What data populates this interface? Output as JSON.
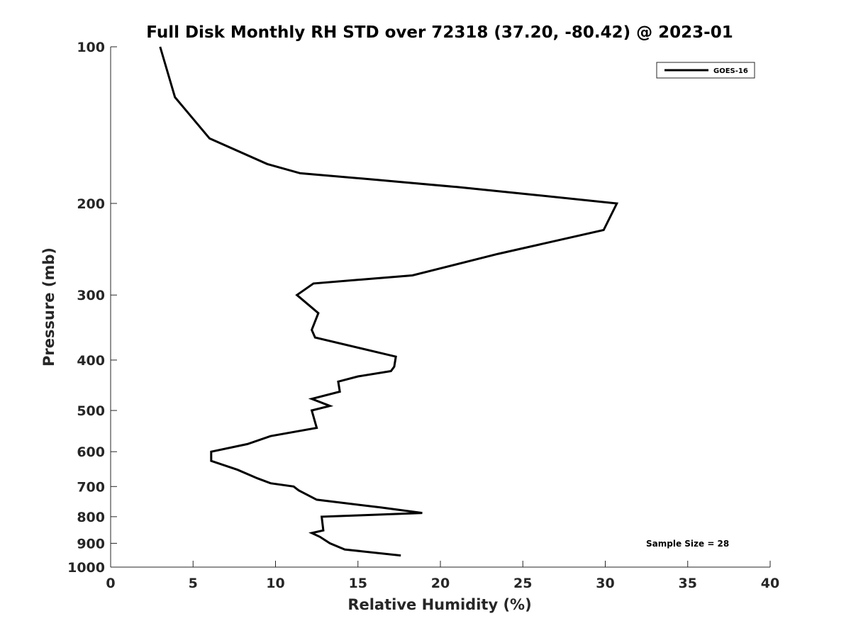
{
  "chart_data": {
    "type": "line",
    "title": "Full Disk Monthly RH STD over 72318 (37.20, -80.42) @ 2023-01",
    "xlabel": "Relative Humidity (%)",
    "ylabel": "Pressure (mb)",
    "xlim": [
      0,
      40
    ],
    "ylim": [
      100,
      1000
    ],
    "y_scale": "log",
    "y_reversed": true,
    "x_ticks": [
      "0",
      "5",
      "10",
      "15",
      "20",
      "25",
      "30",
      "35",
      "40"
    ],
    "x_tick_values": [
      0,
      5,
      10,
      15,
      20,
      25,
      30,
      35,
      40
    ],
    "y_ticks": [
      "100",
      "200",
      "300",
      "400",
      "500",
      "600",
      "700",
      "800",
      "900",
      "1000"
    ],
    "y_tick_values": [
      100,
      200,
      300,
      400,
      500,
      600,
      700,
      800,
      900,
      1000
    ],
    "grid": false,
    "legend_position": "top-right",
    "series": [
      {
        "name": "GOES-16",
        "color": "#000000",
        "points": [
          [
            3.0,
            100
          ],
          [
            3.9,
            125
          ],
          [
            6.0,
            150
          ],
          [
            9.5,
            168
          ],
          [
            11.5,
            175
          ],
          [
            16.0,
            180
          ],
          [
            21.0,
            186
          ],
          [
            26.0,
            193
          ],
          [
            30.7,
            200
          ],
          [
            29.9,
            225
          ],
          [
            23.5,
            250
          ],
          [
            18.3,
            275
          ],
          [
            12.3,
            285
          ],
          [
            11.3,
            300
          ],
          [
            12.6,
            325
          ],
          [
            12.2,
            350
          ],
          [
            12.4,
            362
          ],
          [
            17.3,
            394
          ],
          [
            17.2,
            412
          ],
          [
            17.0,
            420
          ],
          [
            15.0,
            430
          ],
          [
            13.8,
            440
          ],
          [
            13.9,
            460
          ],
          [
            12.2,
            475
          ],
          [
            13.3,
            490
          ],
          [
            12.2,
            500
          ],
          [
            12.5,
            540
          ],
          [
            9.7,
            560
          ],
          [
            8.3,
            580
          ],
          [
            6.1,
            600
          ],
          [
            6.1,
            625
          ],
          [
            7.7,
            650
          ],
          [
            8.9,
            675
          ],
          [
            9.7,
            690
          ],
          [
            11.1,
            700
          ],
          [
            11.4,
            712
          ],
          [
            12.5,
            742
          ],
          [
            16.4,
            768
          ],
          [
            18.9,
            787
          ],
          [
            15.2,
            795
          ],
          [
            12.8,
            800
          ],
          [
            12.9,
            850
          ],
          [
            12.2,
            860
          ],
          [
            12.7,
            875
          ],
          [
            13.3,
            900
          ],
          [
            14.2,
            925
          ],
          [
            17.6,
            950
          ]
        ]
      }
    ],
    "annotations": [
      "Sample Size = 28"
    ]
  }
}
